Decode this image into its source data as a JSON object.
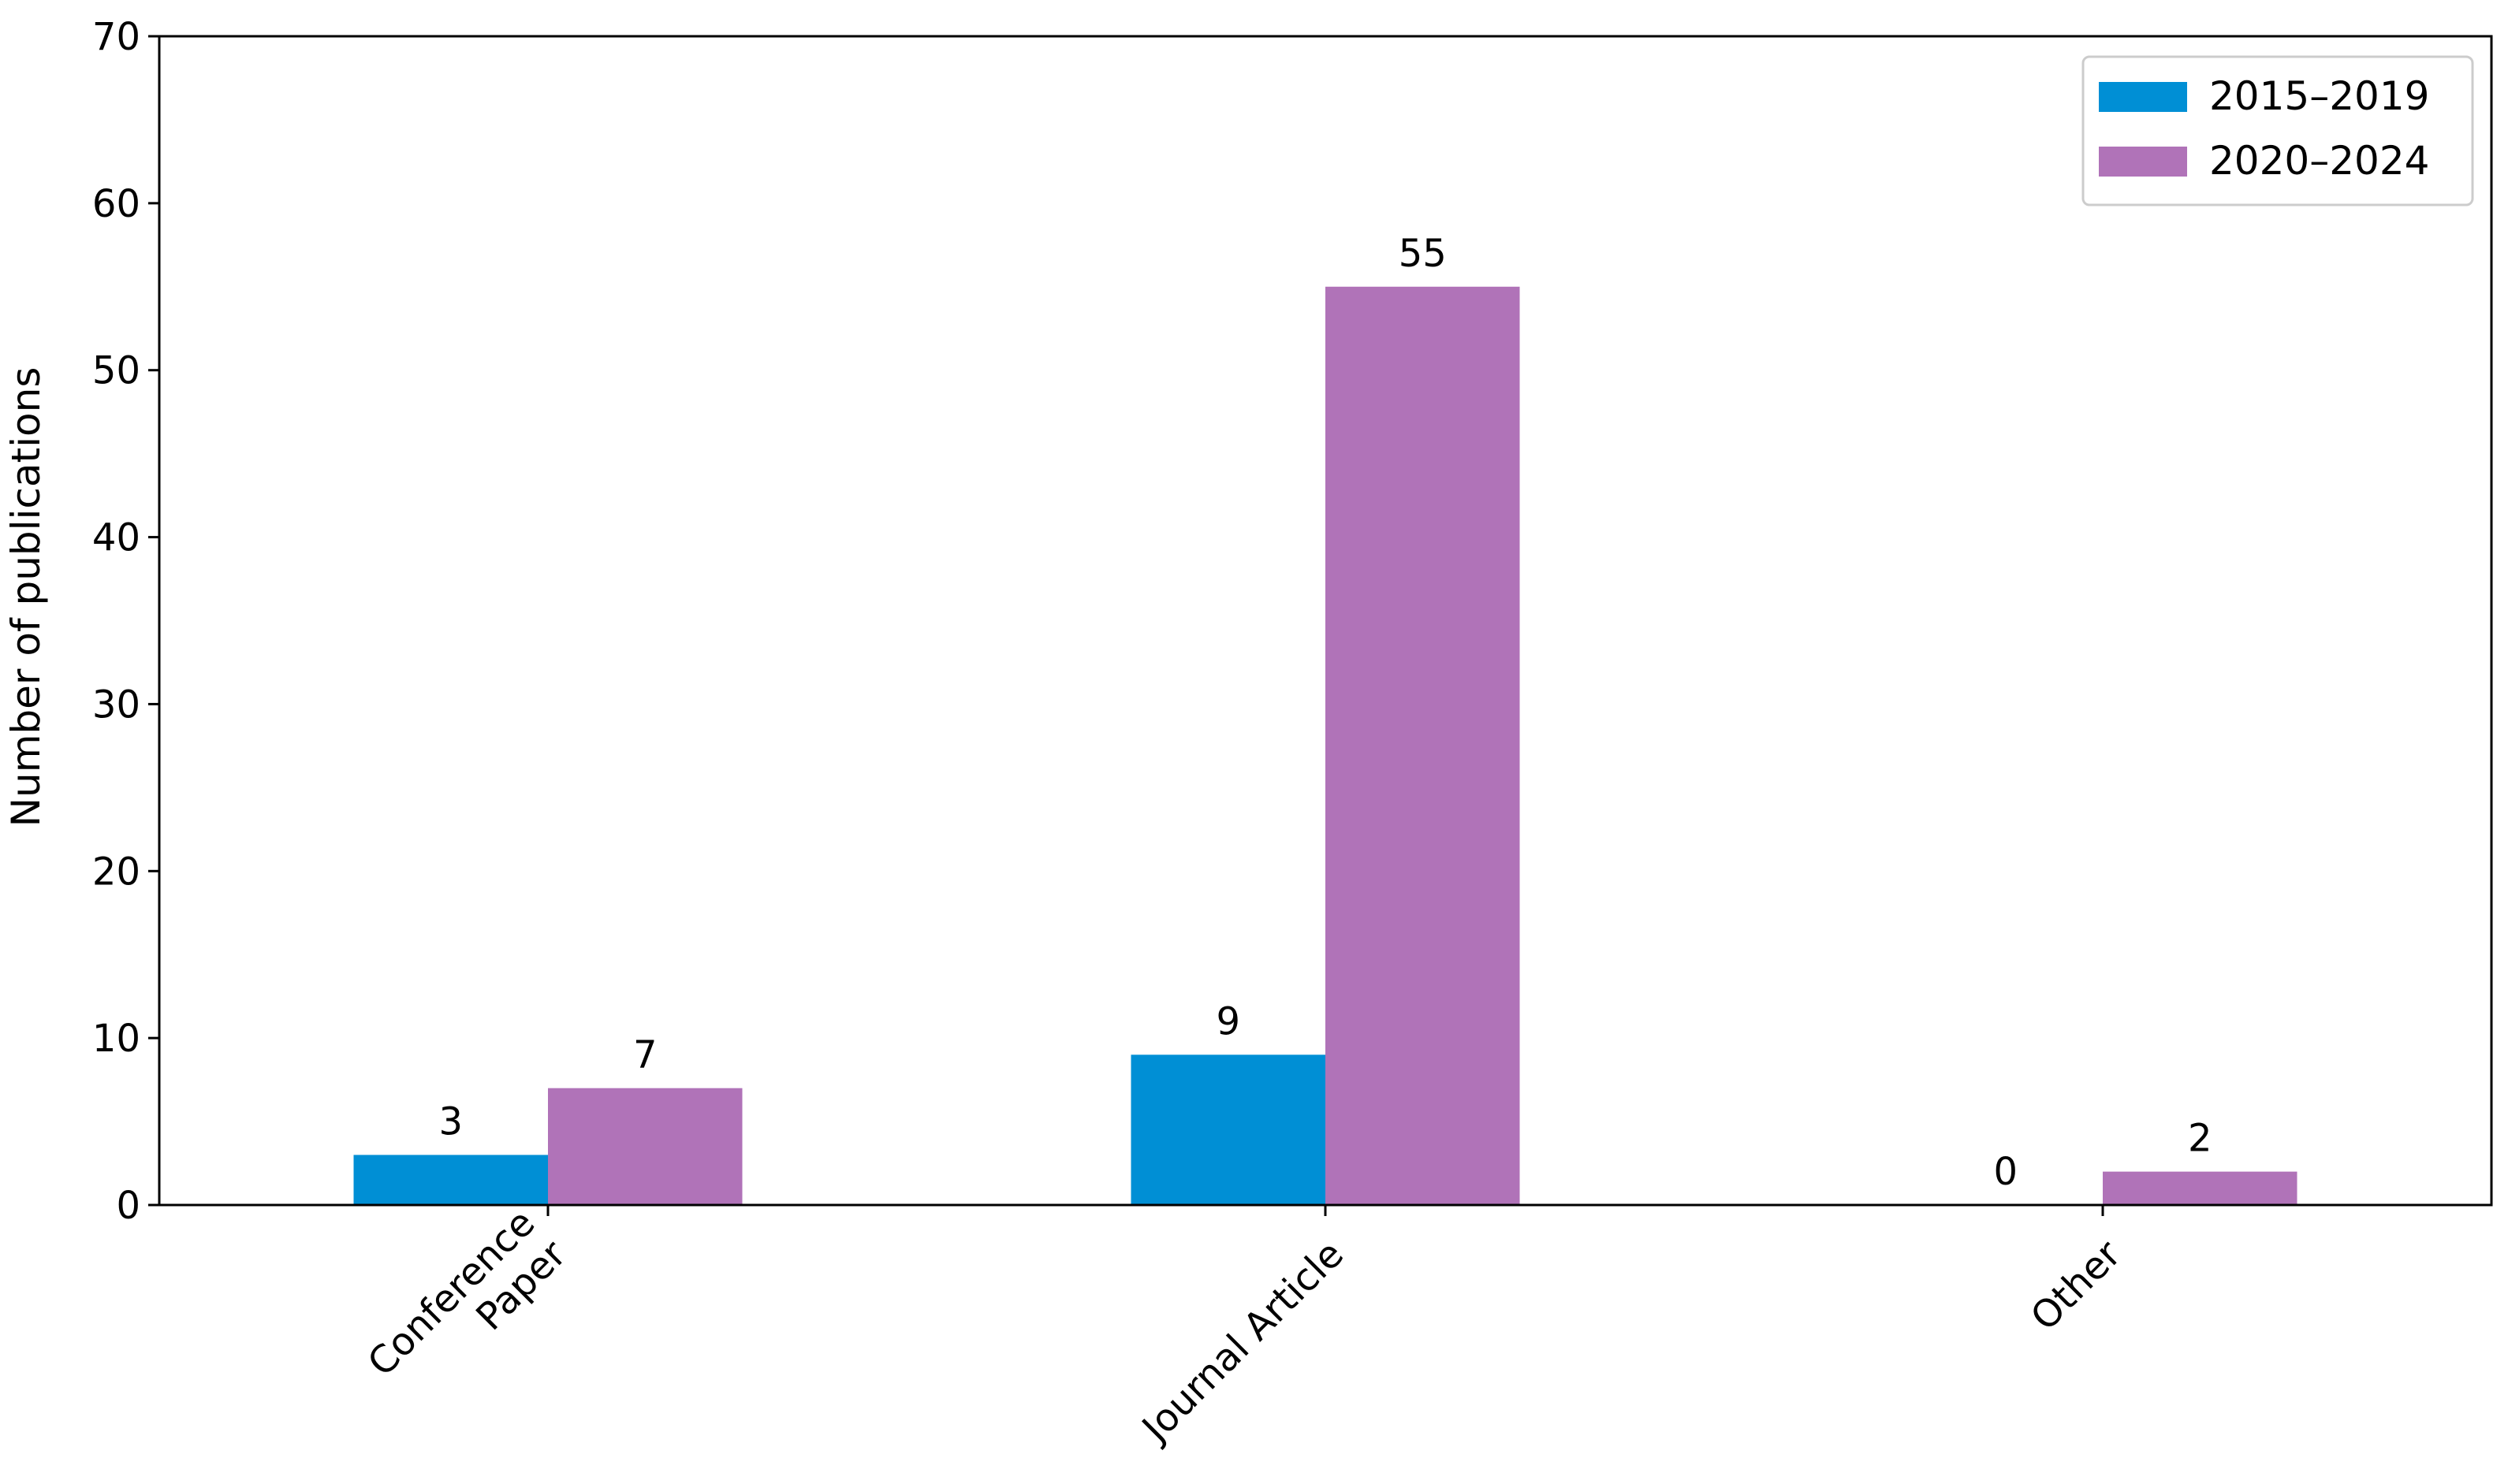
{
  "chart_data": {
    "type": "bar",
    "categories": [
      [
        "Conference",
        "Paper"
      ],
      [
        "Journal Article"
      ],
      [
        "Other"
      ]
    ],
    "series": [
      {
        "name": "2015–2019",
        "color": "#008fd5",
        "values": [
          3,
          9,
          0
        ]
      },
      {
        "name": "2020–2024",
        "color": "#b073b8",
        "values": [
          7,
          55,
          2
        ]
      }
    ],
    "xlabel": "",
    "ylabel": "Number of publications",
    "ylim": [
      0,
      70
    ],
    "yticks": [
      0,
      10,
      20,
      30,
      40,
      50,
      60,
      70
    ],
    "grid": false,
    "legend": "top-right",
    "data_labels": true
  }
}
